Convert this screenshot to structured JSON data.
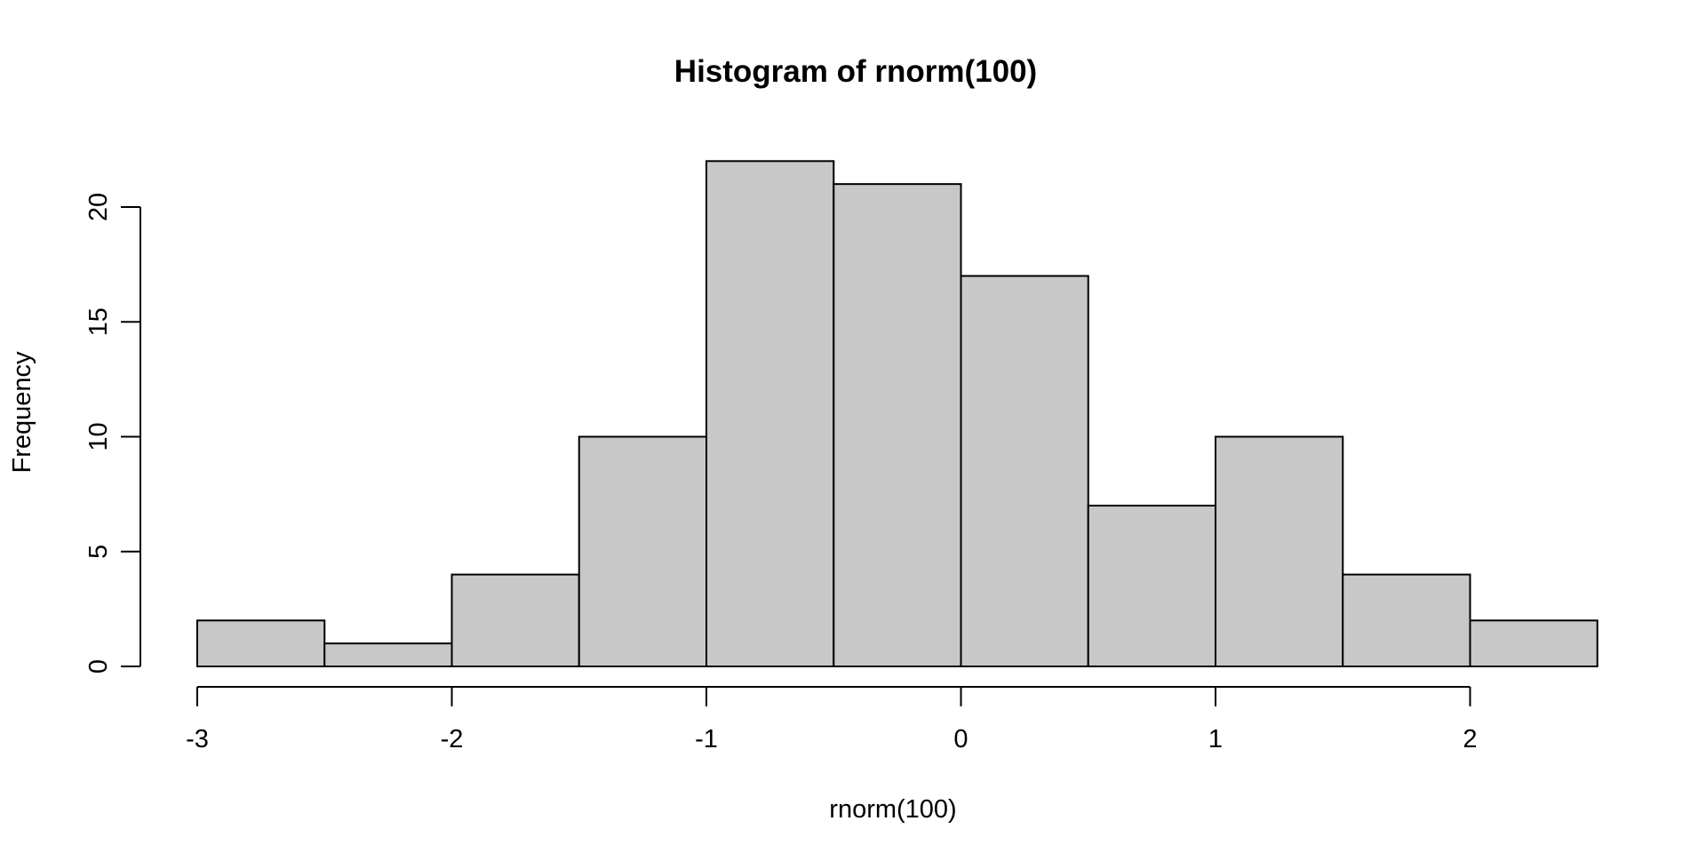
{
  "chart_data": {
    "type": "bar",
    "title": "Histogram of rnorm(100)",
    "xlabel": "rnorm(100)",
    "ylabel": "Frequency",
    "bins": [
      {
        "start": -3.0,
        "end": -2.5,
        "count": 2
      },
      {
        "start": -2.5,
        "end": -2.0,
        "count": 1
      },
      {
        "start": -2.0,
        "end": -1.5,
        "count": 4
      },
      {
        "start": -1.5,
        "end": -1.0,
        "count": 10
      },
      {
        "start": -1.0,
        "end": -0.5,
        "count": 22
      },
      {
        "start": -0.5,
        "end": 0.0,
        "count": 21
      },
      {
        "start": 0.0,
        "end": 0.5,
        "count": 17
      },
      {
        "start": 0.5,
        "end": 1.0,
        "count": 7
      },
      {
        "start": 1.0,
        "end": 1.5,
        "count": 10
      },
      {
        "start": 1.5,
        "end": 2.0,
        "count": 4
      },
      {
        "start": 2.0,
        "end": 2.5,
        "count": 2
      }
    ],
    "x_ticks": [
      -3,
      -2,
      -1,
      0,
      1,
      2
    ],
    "x_tick_labels": [
      "-3",
      "-2",
      "-1",
      "0",
      "1",
      "2"
    ],
    "y_ticks": [
      0,
      5,
      10,
      15,
      20
    ],
    "y_tick_labels": [
      "0",
      "5",
      "10",
      "15",
      "20"
    ],
    "xlim": [
      -3,
      2.5
    ],
    "ylim": [
      0,
      22
    ],
    "grid": false,
    "bar_fill": "#c8c8c8",
    "bar_stroke": "#000000"
  }
}
